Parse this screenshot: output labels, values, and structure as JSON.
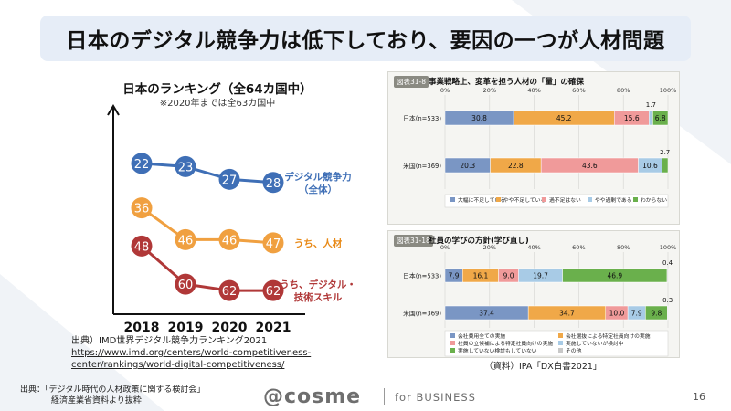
{
  "slide": {
    "title": "日本のデジタル競争力は低下しており、要因の一つが人材問題",
    "page_number": "16",
    "footer_source_line1": "出典：「デジタル時代の人材政策に関する検討会」",
    "footer_source_line2": "経済産業省資料より抜粋",
    "logo": "@cosme",
    "logo_sub": "for BUSINESS"
  },
  "ranking": {
    "title": "日本のランキング（全64カ国中）",
    "note": "※2020年までは全63カ国中",
    "source_line1": "出典）IMD世界デジタル競争力ランキング2021",
    "source_line2": "https://www.imd.org/centers/world-competitiveness-",
    "source_line3": "center/rankings/world-digital-competitiveness/"
  },
  "chart_data": [
    {
      "type": "line",
      "title": "日本のランキング（全64カ国中）",
      "x": [
        "2018",
        "2019",
        "2020",
        "2021"
      ],
      "series": [
        {
          "name": "デジタル競争力（全体）",
          "label_lines": [
            "デジタル競争力",
            "（全体）"
          ],
          "values": [
            22,
            23,
            27,
            28
          ],
          "color": "#3f6fb6",
          "label_color": "#3f6fb6"
        },
        {
          "name": "うち、人材",
          "label_lines": [
            "うち、人材"
          ],
          "values": [
            36,
            46,
            46,
            47
          ],
          "color": "#f0a040",
          "label_color": "#e88a18"
        },
        {
          "name": "うち、デジタル・技術スキル",
          "label_lines": [
            "うち、デジタル・",
            "技術スキル"
          ],
          "values": [
            48,
            60,
            62,
            62
          ],
          "color": "#b03838",
          "label_color": "#b03838"
        }
      ],
      "y_inverted": true,
      "ylim": [
        18,
        66
      ]
    },
    {
      "type": "bar",
      "stacked": true,
      "orientation": "horizontal",
      "tag": "図表31-8",
      "title": "事業戦略上、変革を担う人材の「量」の確保",
      "axis_ticks": [
        "0%",
        "20%",
        "40%",
        "60%",
        "80%",
        "100%"
      ],
      "categories": [
        "日本(n=533)",
        "米国(n=369)"
      ],
      "series": [
        {
          "name": "大幅に不足している",
          "color": "#7a96c4",
          "values": [
            30.8,
            20.3
          ]
        },
        {
          "name": "やや不足している",
          "color": "#f0a848",
          "values": [
            45.2,
            22.8
          ]
        },
        {
          "name": "過不足はない",
          "color": "#f09a9a",
          "values": [
            15.6,
            43.6
          ]
        },
        {
          "name": "やや過剰である",
          "color": "#a8cbe6",
          "values": [
            1.7,
            10.6
          ]
        },
        {
          "name": "わからない",
          "color": "#6ab04c",
          "values": [
            6.8,
            2.7
          ]
        }
      ]
    },
    {
      "type": "bar",
      "stacked": true,
      "orientation": "horizontal",
      "tag": "図表31-18",
      "title": "社員の学びの方針(学び直し)",
      "axis_ticks": [
        "0%",
        "20%",
        "40%",
        "60%",
        "80%",
        "100%"
      ],
      "categories": [
        "日本(n=533)",
        "米国(n=369)"
      ],
      "series": [
        {
          "name": "会社費用全ての実施",
          "color": "#7a96c4",
          "values": [
            7.9,
            37.4
          ]
        },
        {
          "name": "会社選抜による特定社員向けの実施",
          "color": "#f0a848",
          "values": [
            16.1,
            34.7
          ]
        },
        {
          "name": "社員の立候補による特定社員向けの実施",
          "color": "#f09a9a",
          "values": [
            9.0,
            10.0
          ]
        },
        {
          "name": "実施していないが検討中",
          "color": "#a8cbe6",
          "values": [
            19.7,
            7.9
          ]
        },
        {
          "name": "実施していない検討もしていない",
          "color": "#6ab04c",
          "values": [
            46.9,
            9.8
          ]
        },
        {
          "name": "その他",
          "color": "#c8c8c8",
          "values": [
            0.4,
            0.3
          ]
        }
      ]
    }
  ],
  "ipa": {
    "source": "（資料）IPA「DX白書2021」"
  }
}
